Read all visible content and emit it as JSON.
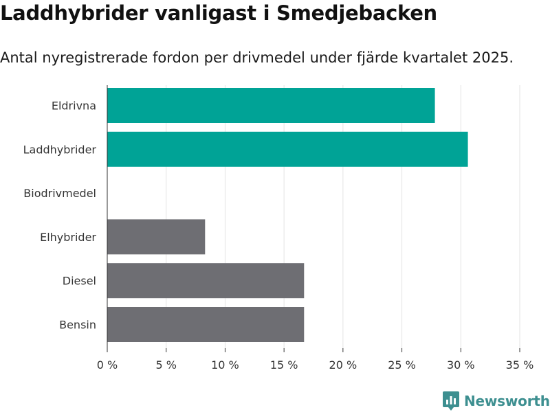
{
  "header": {
    "title": "Laddhybrider vanligast i Smedjebacken",
    "subtitle": "Antal nyregistrerade fordon per drivmedel under fjärde kvartalet 2025."
  },
  "chart_data": {
    "type": "bar",
    "orientation": "horizontal",
    "title": "Laddhybrider vanligast i Smedjebacken",
    "subtitle": "Antal nyregistrerade fordon per drivmedel under fjärde kvartalet 2025.",
    "xlabel": "",
    "ylabel": "",
    "categories": [
      "Eldrivna",
      "Laddhybrider",
      "Biodrivmedel",
      "Elhybrider",
      "Diesel",
      "Bensin"
    ],
    "values": [
      27.8,
      30.6,
      0,
      8.3,
      16.7,
      16.7
    ],
    "colors": [
      "#00a396",
      "#00a396",
      "#6e6e73",
      "#6e6e73",
      "#6e6e73",
      "#6e6e73"
    ],
    "xlim": [
      0,
      35
    ],
    "xticks": [
      0,
      5,
      10,
      15,
      20,
      25,
      30,
      35
    ],
    "xtick_labels": [
      "0 %",
      "5 %",
      "10 %",
      "15 %",
      "20 %",
      "25 %",
      "30 %",
      "35 %"
    ],
    "grid": true,
    "legend": "none"
  },
  "footer": {
    "brand": "Newsworthy",
    "brand_color": "#3d8f90",
    "logo_icon": "bar-chart-logo-icon"
  }
}
